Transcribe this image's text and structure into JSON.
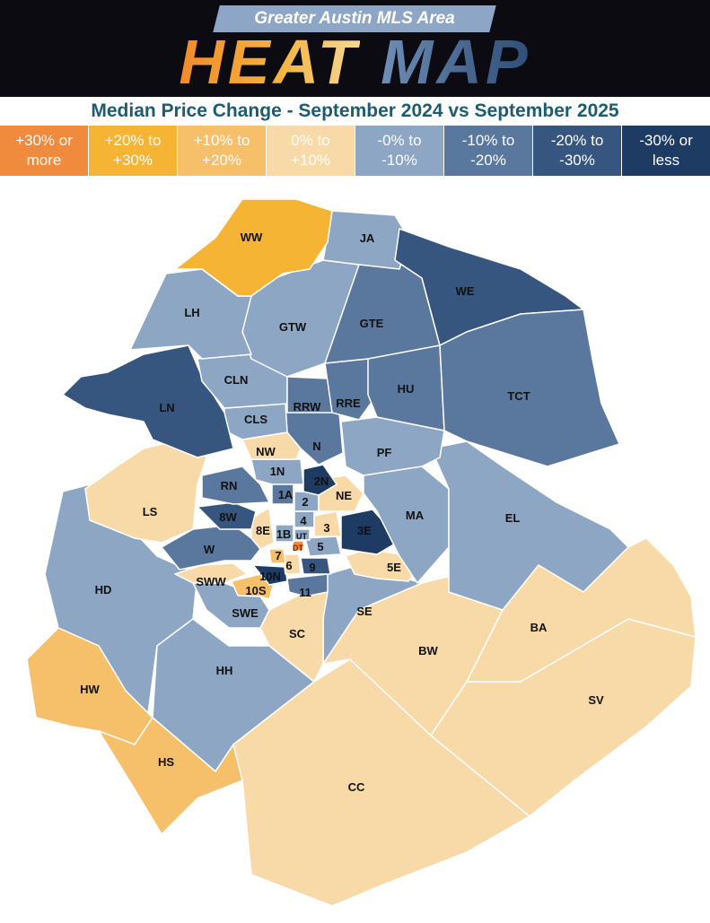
{
  "header": {
    "supertitle": "Greater Austin MLS Area",
    "title_heat": "HEAT",
    "title_map": "MAP",
    "subtitle": "Median Price Change - September 2024 vs September 2025"
  },
  "legend": [
    {
      "label": "+30% or\nmore",
      "color": "#f08a3c"
    },
    {
      "label": "+20% to\n+30%",
      "color": "#f6b435"
    },
    {
      "label": "+10% to\n+20%",
      "color": "#f6c06a"
    },
    {
      "label": "0% to\n+10%",
      "color": "#f8d9a8"
    },
    {
      "label": "-0% to\n-10%",
      "color": "#8da6c4"
    },
    {
      "label": "-10% to\n-20%",
      "color": "#5a789e"
    },
    {
      "label": "-20% to\n-30%",
      "color": "#36567f"
    },
    {
      "label": "-30% or\nless",
      "color": "#1d3b63"
    }
  ],
  "areas": [
    {
      "code": "WW",
      "category": "+20% to +30%"
    },
    {
      "code": "JA",
      "category": "-0% to -10%"
    },
    {
      "code": "WE",
      "category": "-20% to -30%"
    },
    {
      "code": "LH",
      "category": "-0% to -10%"
    },
    {
      "code": "GTW",
      "category": "-0% to -10%"
    },
    {
      "code": "GTE",
      "category": "-10% to -20%"
    },
    {
      "code": "TCT",
      "category": "-10% to -20%"
    },
    {
      "code": "CLN",
      "category": "-0% to -10%"
    },
    {
      "code": "RRW",
      "category": "-10% to -20%"
    },
    {
      "code": "RRE",
      "category": "-10% to -20%"
    },
    {
      "code": "HU",
      "category": "-10% to -20%"
    },
    {
      "code": "LN",
      "category": "-20% to -30%"
    },
    {
      "code": "CLS",
      "category": "-0% to -10%"
    },
    {
      "code": "N",
      "category": "-10% to -20%"
    },
    {
      "code": "PF",
      "category": "-0% to -10%"
    },
    {
      "code": "NW",
      "category": "0% to +10%"
    },
    {
      "code": "1N",
      "category": "-0% to -10%"
    },
    {
      "code": "2N",
      "category": "-30% or less"
    },
    {
      "code": "RN",
      "category": "-10% to -20%"
    },
    {
      "code": "NE",
      "category": "0% to +10%"
    },
    {
      "code": "1A",
      "category": "-10% to -20%"
    },
    {
      "code": "2",
      "category": "-0% to -10%"
    },
    {
      "code": "LS",
      "category": "0% to +10%"
    },
    {
      "code": "8W",
      "category": "-20% to -30%"
    },
    {
      "code": "4",
      "category": "-0% to -10%"
    },
    {
      "code": "MA",
      "category": "-0% to -10%"
    },
    {
      "code": "EL",
      "category": "-0% to -10%"
    },
    {
      "code": "3",
      "category": "0% to +10%"
    },
    {
      "code": "3E",
      "category": "-30% or less"
    },
    {
      "code": "8E",
      "category": "0% to +10%"
    },
    {
      "code": "1B",
      "category": "-0% to -10%"
    },
    {
      "code": "UT",
      "category": "-0% to -10%"
    },
    {
      "code": "5",
      "category": "-0% to -10%"
    },
    {
      "code": "DT",
      "category": "+30% or more"
    },
    {
      "code": "W",
      "category": "-10% to -20%"
    },
    {
      "code": "7",
      "category": "+10% to +20%"
    },
    {
      "code": "6",
      "category": "0% to +10%"
    },
    {
      "code": "9",
      "category": "-20% to -30%"
    },
    {
      "code": "5E",
      "category": "0% to +10%"
    },
    {
      "code": "10N",
      "category": "-30% or less"
    },
    {
      "code": "SWW",
      "category": "0% to +10%"
    },
    {
      "code": "10S",
      "category": "+10% to +20%"
    },
    {
      "code": "11",
      "category": "-10% to -20%"
    },
    {
      "code": "HD",
      "category": "-0% to -10%"
    },
    {
      "code": "SWE",
      "category": "-0% to -10%"
    },
    {
      "code": "SE",
      "category": "-0% to -10%"
    },
    {
      "code": "SC",
      "category": "0% to +10%"
    },
    {
      "code": "BA",
      "category": "0% to +10%"
    },
    {
      "code": "BW",
      "category": "0% to +10%"
    },
    {
      "code": "HH",
      "category": "-0% to -10%"
    },
    {
      "code": "HW",
      "category": "+10% to +20%"
    },
    {
      "code": "SV",
      "category": "0% to +10%"
    },
    {
      "code": "HS",
      "category": "+10% to +20%"
    },
    {
      "code": "CC",
      "category": "0% to +10%"
    }
  ]
}
